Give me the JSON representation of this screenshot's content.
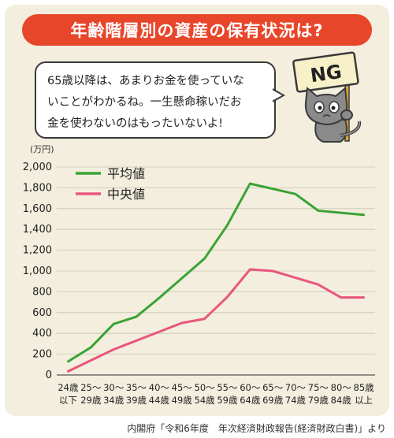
{
  "title": "年齢階層別の資産の保有状況は?",
  "speech": {
    "line1": "65歳以降は、あまりお金を使っていな",
    "line2": "いことがわかるね。一生懸命稼いだお",
    "line3": "金を使わないのはもったいないよ!"
  },
  "sign_text": "NG",
  "source": "内閣府「令和6年度　年次経済財政報告(経済財政白書)」より",
  "colors": {
    "banner": "#e8462a",
    "avg_line": "#3aa335",
    "median_line": "#e9567c",
    "panel_bg": "#f3eedd"
  },
  "chart_data": {
    "type": "line",
    "unit_label": "(万円)",
    "categories": [
      [
        "24歳",
        "以下"
      ],
      [
        "25〜",
        "29歳"
      ],
      [
        "30〜",
        "34歳"
      ],
      [
        "35〜",
        "39歳"
      ],
      [
        "40〜",
        "44歳"
      ],
      [
        "45〜",
        "49歳"
      ],
      [
        "50〜",
        "54歳"
      ],
      [
        "55〜",
        "59歳"
      ],
      [
        "60〜",
        "64歳"
      ],
      [
        "65〜",
        "69歳"
      ],
      [
        "70〜",
        "74歳"
      ],
      [
        "75〜",
        "79歳"
      ],
      [
        "80〜",
        "84歳"
      ],
      [
        "85歳",
        "以上"
      ]
    ],
    "ylim": [
      0,
      2000
    ],
    "yticks": [
      0,
      200,
      400,
      600,
      800,
      1000,
      1200,
      1400,
      1600,
      1800,
      2000
    ],
    "ytick_labels": [
      "0",
      "200",
      "400",
      "600",
      "800",
      "1,000",
      "1,200",
      "1,400",
      "1,600",
      "1,800",
      "2,000"
    ],
    "grid": true,
    "legend_placement": "top-left",
    "series": [
      {
        "name": "平均値",
        "color": "#3aa335",
        "values": [
          130,
          265,
          490,
          560,
          740,
          930,
          1120,
          1440,
          1840,
          1790,
          1740,
          1580,
          1560,
          1540
        ]
      },
      {
        "name": "中央値",
        "color": "#e9567c",
        "values": [
          35,
          140,
          245,
          330,
          415,
          500,
          540,
          750,
          1015,
          1000,
          935,
          870,
          745,
          745
        ]
      }
    ]
  }
}
